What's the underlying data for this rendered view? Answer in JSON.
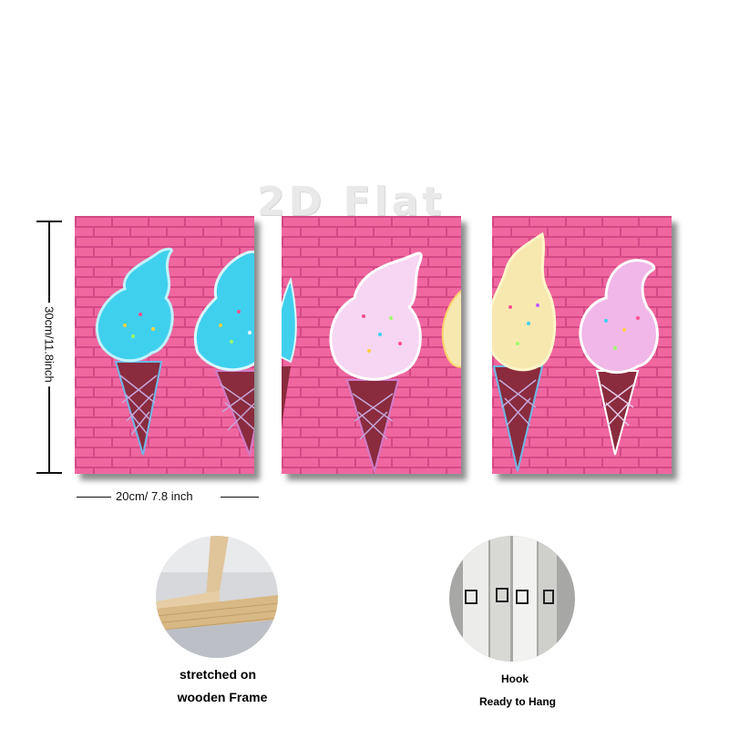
{
  "watermark": "2D Flat",
  "dimensions": {
    "height_label": "30cm/11.8inch",
    "width_label": "20cm/ 7.8 inch"
  },
  "features": {
    "frame_caption_line1": "stretched on",
    "frame_caption_line2": "wooden Frame",
    "hook_caption_line1": "Hook",
    "hook_caption_line2": "Ready to Hang"
  },
  "colors": {
    "wall_pink": "#f0669f",
    "cone_brown": "#8a2b3e",
    "ice_blue": "#3fd0ee",
    "ice_pink": "#f6d6f2",
    "ice_cream": "#f7e8b0",
    "frame_wood": "#e0c49a"
  }
}
